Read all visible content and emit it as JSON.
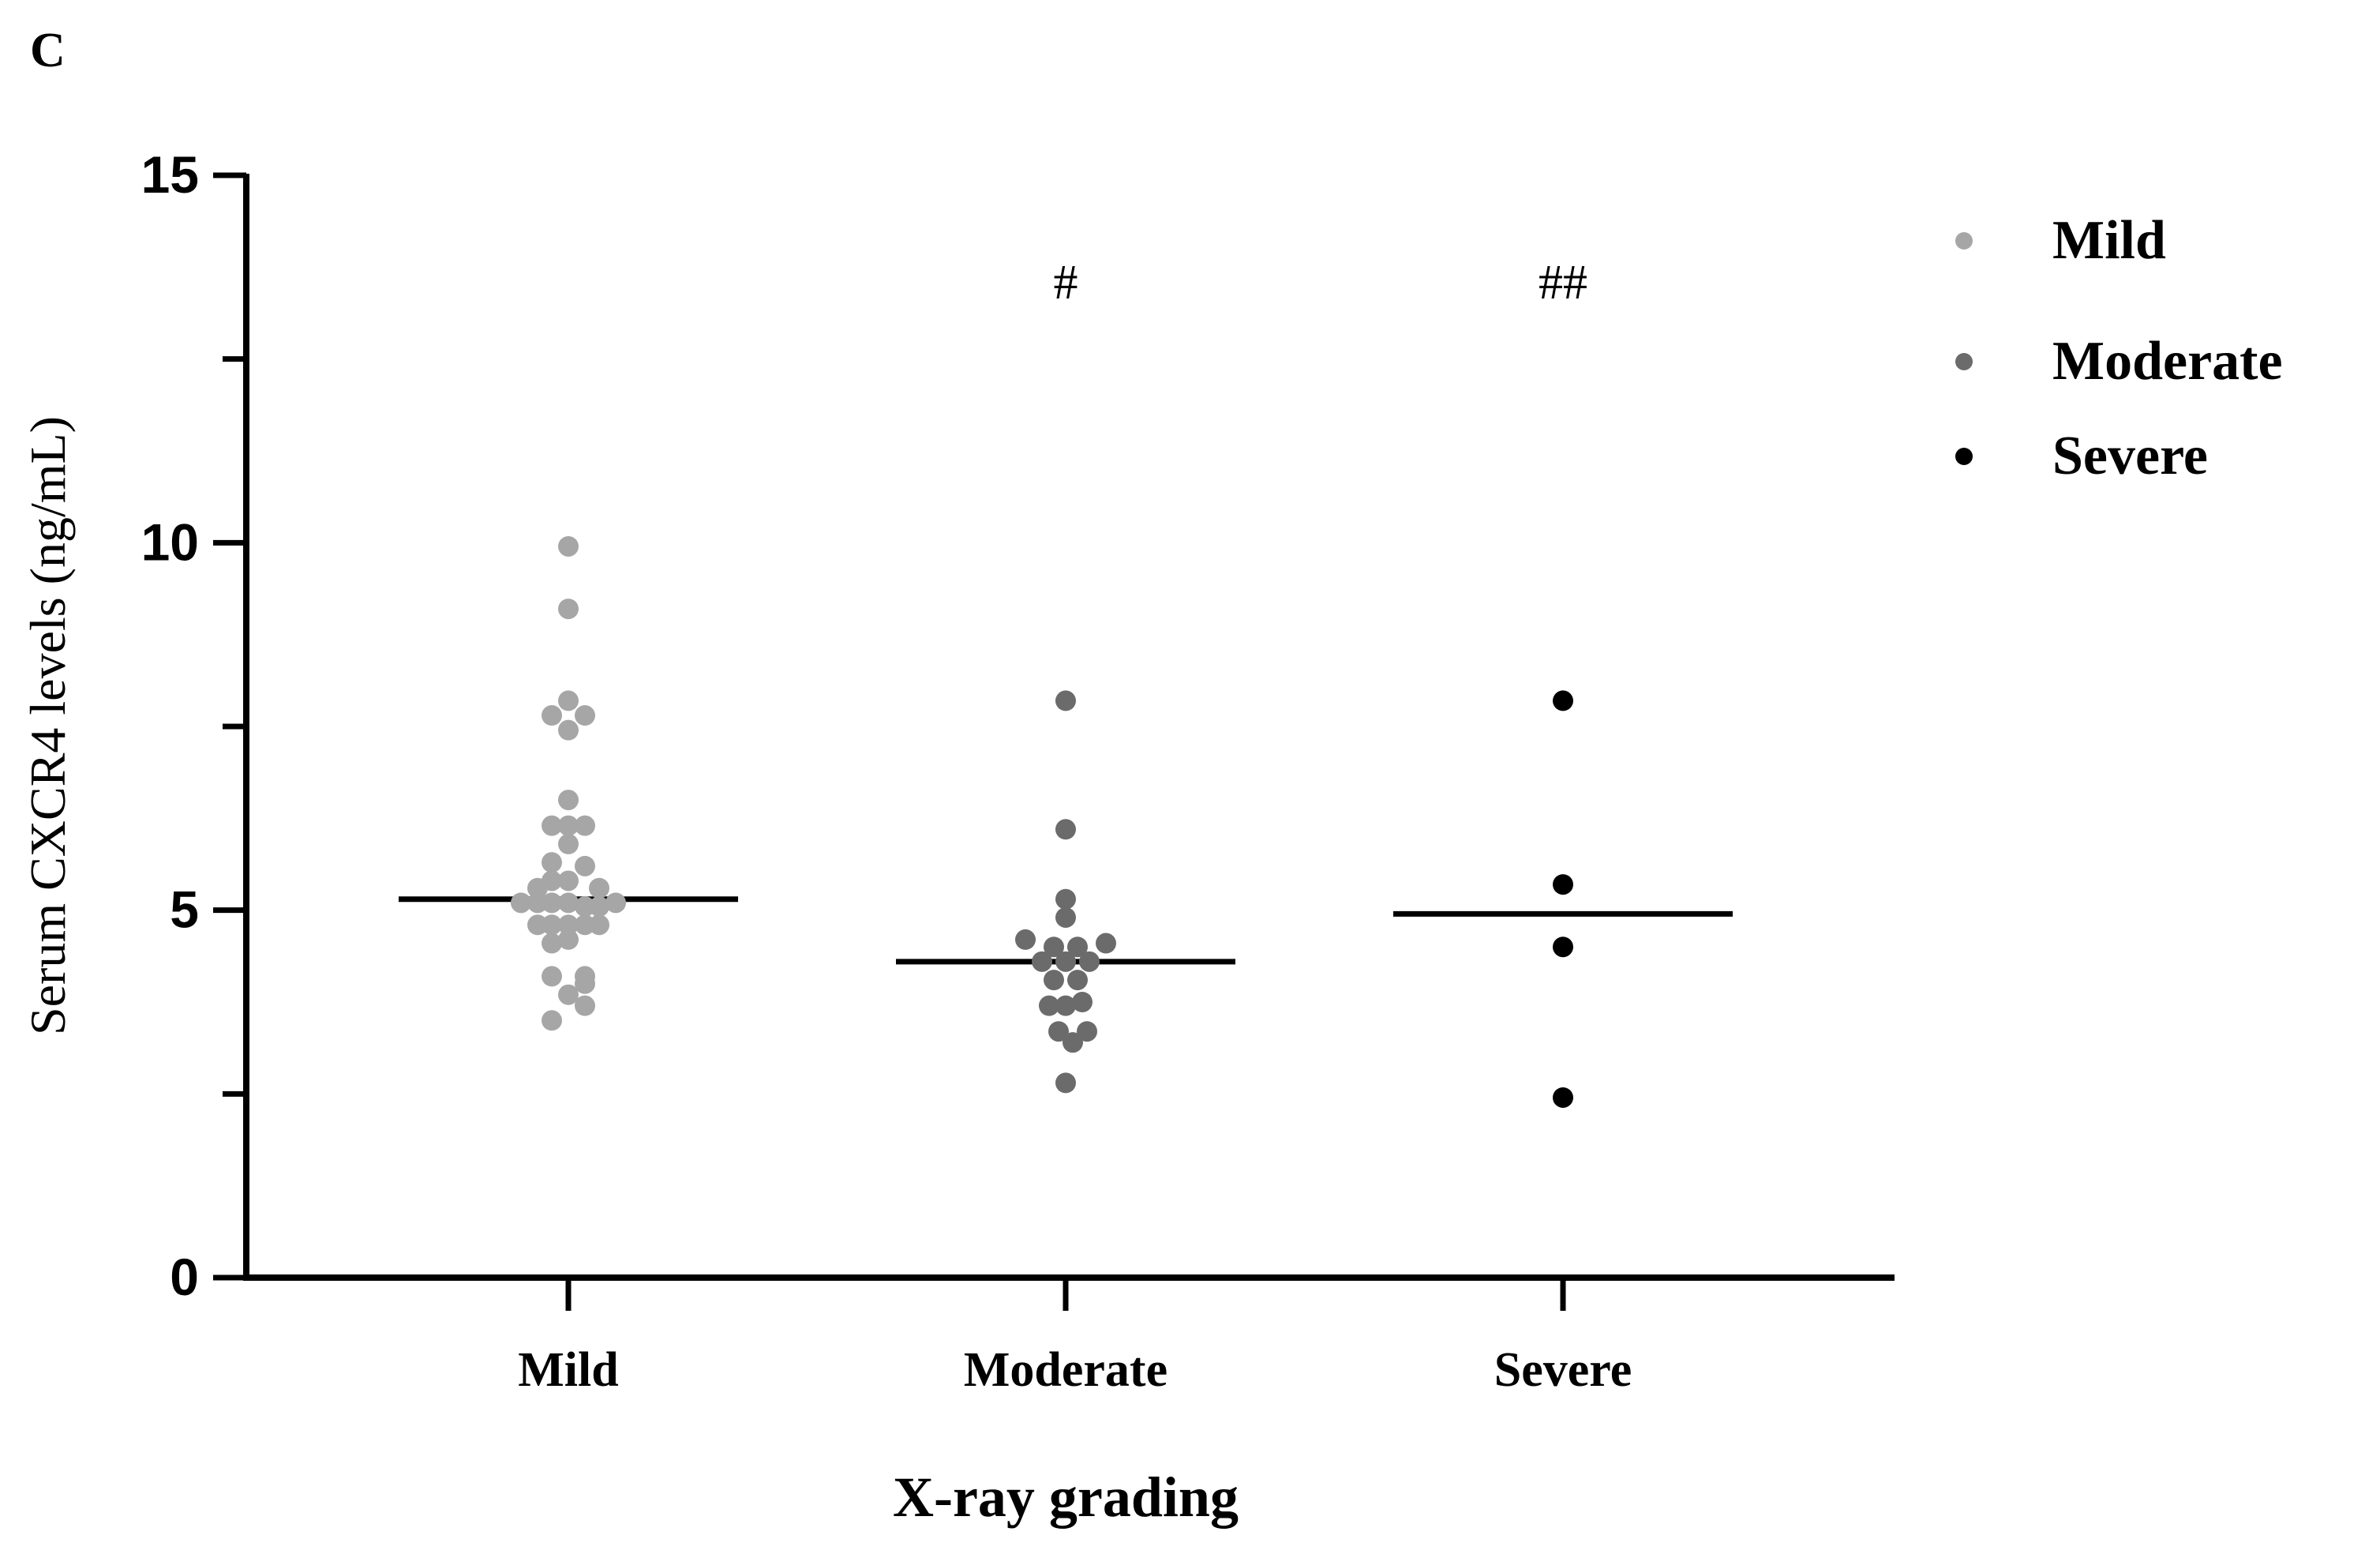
{
  "panel_label": "C",
  "chart_data": {
    "type": "scatter",
    "title": "",
    "xlabel": "X-ray grading",
    "ylabel": "Serum CXCR4 levels (ng/mL)",
    "ylim": [
      0,
      15
    ],
    "y_major_ticks": [
      0,
      5,
      10,
      15
    ],
    "y_minor_step": 2.5,
    "categories": [
      "Mild",
      "Moderate",
      "Severe"
    ],
    "legend": {
      "position": "top-right",
      "entries": [
        "Mild",
        "Moderate",
        "Severe"
      ]
    },
    "series": [
      {
        "name": "Mild",
        "color": "#a6a6a6",
        "median": 5.15,
        "annotation": "",
        "points": [
          {
            "x": 0.0,
            "y": 9.95
          },
          {
            "x": 0.0,
            "y": 9.1
          },
          {
            "x": -0.07,
            "y": 7.65
          },
          {
            "x": 0.0,
            "y": 7.85
          },
          {
            "x": 0.07,
            "y": 7.65
          },
          {
            "x": 0.0,
            "y": 7.45
          },
          {
            "x": 0.0,
            "y": 6.5
          },
          {
            "x": -0.07,
            "y": 6.15
          },
          {
            "x": 0.0,
            "y": 6.15
          },
          {
            "x": 0.07,
            "y": 6.15
          },
          {
            "x": 0.0,
            "y": 5.9
          },
          {
            "x": -0.07,
            "y": 5.65
          },
          {
            "x": 0.07,
            "y": 5.6
          },
          {
            "x": -0.07,
            "y": 5.4
          },
          {
            "x": 0.0,
            "y": 5.4
          },
          {
            "x": -0.13,
            "y": 5.3
          },
          {
            "x": 0.13,
            "y": 5.3
          },
          {
            "x": -0.2,
            "y": 5.1
          },
          {
            "x": -0.13,
            "y": 5.1
          },
          {
            "x": -0.07,
            "y": 5.1
          },
          {
            "x": 0.0,
            "y": 5.1
          },
          {
            "x": 0.07,
            "y": 5.05
          },
          {
            "x": 0.13,
            "y": 5.05
          },
          {
            "x": 0.2,
            "y": 5.1
          },
          {
            "x": -0.13,
            "y": 4.8
          },
          {
            "x": -0.07,
            "y": 4.8
          },
          {
            "x": 0.0,
            "y": 4.8
          },
          {
            "x": 0.07,
            "y": 4.8
          },
          {
            "x": 0.13,
            "y": 4.8
          },
          {
            "x": -0.07,
            "y": 4.55
          },
          {
            "x": 0.0,
            "y": 4.6
          },
          {
            "x": -0.07,
            "y": 4.1
          },
          {
            "x": 0.07,
            "y": 4.1
          },
          {
            "x": 0.07,
            "y": 4.0
          },
          {
            "x": 0.0,
            "y": 3.85
          },
          {
            "x": 0.07,
            "y": 3.7
          },
          {
            "x": -0.07,
            "y": 3.5
          }
        ]
      },
      {
        "name": "Moderate",
        "color": "#6b6b6b",
        "median": 4.3,
        "annotation": "#",
        "points": [
          {
            "x": 0.0,
            "y": 7.85
          },
          {
            "x": 0.0,
            "y": 6.1
          },
          {
            "x": 0.0,
            "y": 5.15
          },
          {
            "x": 0.0,
            "y": 4.9
          },
          {
            "x": -0.17,
            "y": 4.6
          },
          {
            "x": -0.05,
            "y": 4.5
          },
          {
            "x": 0.05,
            "y": 4.5
          },
          {
            "x": 0.17,
            "y": 4.55
          },
          {
            "x": -0.1,
            "y": 4.3
          },
          {
            "x": 0.0,
            "y": 4.3
          },
          {
            "x": 0.1,
            "y": 4.3
          },
          {
            "x": -0.05,
            "y": 4.05
          },
          {
            "x": 0.05,
            "y": 4.05
          },
          {
            "x": -0.07,
            "y": 3.7
          },
          {
            "x": 0.0,
            "y": 3.7
          },
          {
            "x": 0.07,
            "y": 3.75
          },
          {
            "x": -0.03,
            "y": 3.35
          },
          {
            "x": 0.09,
            "y": 3.35
          },
          {
            "x": 0.03,
            "y": 3.2
          },
          {
            "x": 0.0,
            "y": 2.65
          }
        ]
      },
      {
        "name": "Severe",
        "color": "#000000",
        "median": 4.95,
        "annotation": "##",
        "points": [
          {
            "x": 0.0,
            "y": 7.85
          },
          {
            "x": 0.0,
            "y": 5.35
          },
          {
            "x": 0.0,
            "y": 4.5
          },
          {
            "x": 0.0,
            "y": 2.45
          }
        ]
      }
    ]
  }
}
